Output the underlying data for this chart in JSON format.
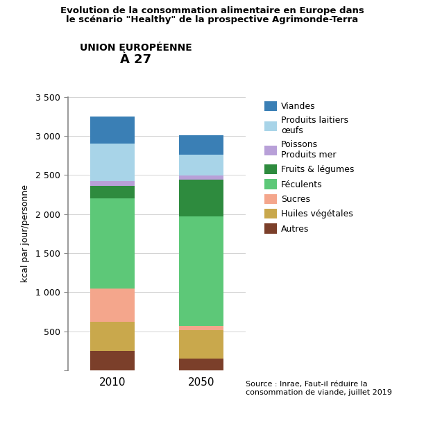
{
  "title_line1": "Evolution de la consommation alimentaire en Europe dans",
  "title_line2": "le scénario \"Healthy\" de la prospective Agrimonde-Terra",
  "subtitle_line1": "UNION EUROPÉENNE",
  "subtitle_line2": "À 27",
  "ylabel": "kcal par jour/personne",
  "source": "Source : Inrae, Faut-il réduire la\nconsommation de viande, juillet 2019",
  "years": [
    "2010",
    "2050"
  ],
  "categories": [
    "Autres",
    "Huiles végétales",
    "Sucres",
    "Féculents",
    "Fruits & légumes",
    "Poissons\nProduits mer",
    "Produits laitiers\nœufs",
    "Viandes"
  ],
  "legend_labels": [
    "Viandes",
    "Produits laitiers\nœufs",
    "Poissons\nProduits mer",
    "Fruits & légumes",
    "Féculents",
    "Sucres",
    "Huiles végétales",
    "Autres"
  ],
  "colors": [
    "#7B3F2A",
    "#C9A84C",
    "#F4A68C",
    "#5DC878",
    "#2E8B3E",
    "#B8A0D8",
    "#A8D4E8",
    "#3A7FB5"
  ],
  "values_2010": [
    250,
    370,
    430,
    1150,
    160,
    60,
    480,
    350
  ],
  "values_2050": [
    150,
    370,
    50,
    1400,
    470,
    50,
    270,
    250
  ],
  "ylim": [
    0,
    3500
  ],
  "yticks": [
    0,
    500,
    1000,
    1500,
    2000,
    2500,
    3000,
    3500
  ],
  "ytick_labels": [
    "",
    "500",
    "1 000",
    "1 500",
    "2 000",
    "2 500",
    "3 000",
    "3 500"
  ],
  "bar_width": 0.5,
  "background_color": "#FFFFFF"
}
